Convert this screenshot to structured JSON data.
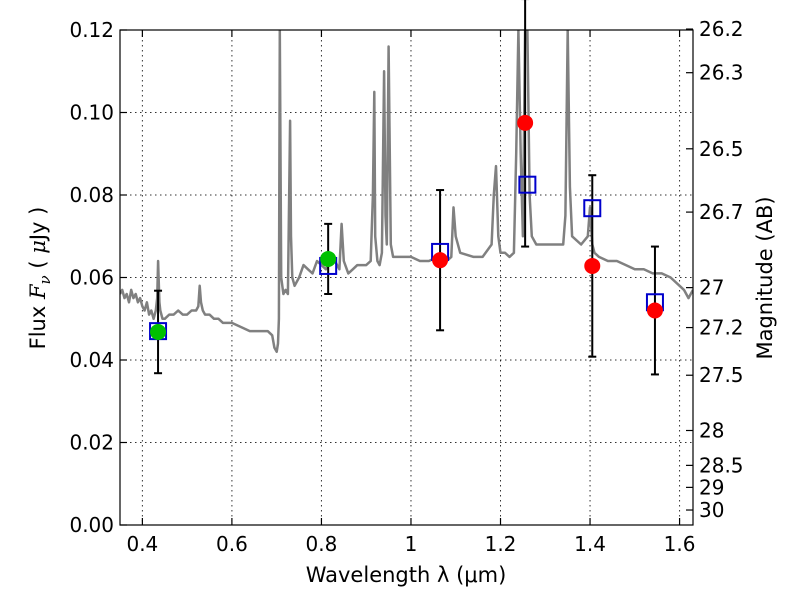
{
  "chart_data": {
    "type": "scatter",
    "xlabel": "Wavelength  λ (μm)",
    "ylabel": "Flux  F_ν  ( μJy )",
    "ylabel_parts": {
      "pre": "Flux ",
      "sym": "F",
      "sub": "ν",
      "open": " ( ",
      "mu": "μ",
      "unit": "Jy )"
    },
    "y2label": "Magnitude (AB)",
    "xlim": [
      0.35,
      1.63
    ],
    "ylim": [
      0.0,
      0.12
    ],
    "grid": true,
    "x_ticks": [
      {
        "value": 0.4,
        "label": "0.4"
      },
      {
        "value": 0.6,
        "label": "0.6"
      },
      {
        "value": 0.8,
        "label": "0.8"
      },
      {
        "value": 1.0,
        "label": "1"
      },
      {
        "value": 1.2,
        "label": "1.2"
      },
      {
        "value": 1.4,
        "label": "1.4"
      },
      {
        "value": 1.6,
        "label": "1.6"
      }
    ],
    "y_ticks": [
      {
        "value": 0.0,
        "label": "0.00"
      },
      {
        "value": 0.02,
        "label": "0.02"
      },
      {
        "value": 0.04,
        "label": "0.04"
      },
      {
        "value": 0.06,
        "label": "0.06"
      },
      {
        "value": 0.08,
        "label": "0.08"
      },
      {
        "value": 0.1,
        "label": "0.10"
      },
      {
        "value": 0.12,
        "label": "0.12"
      }
    ],
    "y2_ticks": [
      {
        "mag": 26.2,
        "label": "26.2"
      },
      {
        "mag": 26.3,
        "label": "26.3"
      },
      {
        "mag": 26.5,
        "label": "26.5"
      },
      {
        "mag": 26.7,
        "label": "26.7"
      },
      {
        "mag": 27.0,
        "label": "27"
      },
      {
        "mag": 27.2,
        "label": "27.2"
      },
      {
        "mag": 27.5,
        "label": "27.5"
      },
      {
        "mag": 28.0,
        "label": "28"
      },
      {
        "mag": 28.5,
        "label": "28.5"
      },
      {
        "mag": 29.0,
        "label": "29"
      },
      {
        "mag": 30.0,
        "label": "30"
      }
    ],
    "colors": {
      "spectrum": "#808080",
      "observed_green": "#00c000",
      "observed_red": "#ff0000",
      "model": "#0000cc",
      "errorbar": "#000000"
    },
    "spectrum": {
      "x": [
        0.35,
        0.355,
        0.36,
        0.365,
        0.37,
        0.375,
        0.38,
        0.385,
        0.39,
        0.395,
        0.4,
        0.405,
        0.41,
        0.415,
        0.42,
        0.425,
        0.43,
        0.433,
        0.435,
        0.438,
        0.44,
        0.445,
        0.45,
        0.46,
        0.47,
        0.48,
        0.49,
        0.5,
        0.51,
        0.52,
        0.525,
        0.528,
        0.531,
        0.535,
        0.54,
        0.55,
        0.56,
        0.57,
        0.58,
        0.59,
        0.6,
        0.62,
        0.64,
        0.66,
        0.68,
        0.69,
        0.695,
        0.7,
        0.703,
        0.705,
        0.707,
        0.71,
        0.715,
        0.72,
        0.725,
        0.73,
        0.732,
        0.735,
        0.74,
        0.75,
        0.76,
        0.77,
        0.78,
        0.79,
        0.8,
        0.81,
        0.82,
        0.83,
        0.84,
        0.845,
        0.85,
        0.86,
        0.87,
        0.88,
        0.9,
        0.91,
        0.915,
        0.918,
        0.92,
        0.925,
        0.93,
        0.935,
        0.94,
        0.943,
        0.946,
        0.95,
        0.955,
        0.96,
        0.98,
        1.0,
        1.02,
        1.04,
        1.06,
        1.08,
        1.09,
        1.095,
        1.1,
        1.11,
        1.14,
        1.16,
        1.18,
        1.185,
        1.19,
        1.195,
        1.2,
        1.21,
        1.22,
        1.23,
        1.235,
        1.24,
        1.245,
        1.25,
        1.255,
        1.26,
        1.265,
        1.27,
        1.28,
        1.3,
        1.32,
        1.34,
        1.345,
        1.35,
        1.355,
        1.36,
        1.38,
        1.395,
        1.4,
        1.405,
        1.41,
        1.42,
        1.44,
        1.46,
        1.48,
        1.5,
        1.52,
        1.54,
        1.56,
        1.58,
        1.6,
        1.61,
        1.62,
        1.63
      ],
      "y": [
        0.056,
        0.057,
        0.055,
        0.056,
        0.054,
        0.057,
        0.055,
        0.056,
        0.054,
        0.055,
        0.053,
        0.052,
        0.054,
        0.051,
        0.052,
        0.05,
        0.052,
        0.055,
        0.064,
        0.054,
        0.052,
        0.05,
        0.05,
        0.051,
        0.051,
        0.052,
        0.051,
        0.051,
        0.052,
        0.052,
        0.053,
        0.058,
        0.054,
        0.052,
        0.051,
        0.051,
        0.05,
        0.05,
        0.049,
        0.049,
        0.049,
        0.048,
        0.047,
        0.047,
        0.047,
        0.046,
        0.043,
        0.042,
        0.044,
        0.05,
        0.12,
        0.06,
        0.056,
        0.057,
        0.056,
        0.098,
        0.07,
        0.06,
        0.058,
        0.06,
        0.063,
        0.062,
        0.061,
        0.064,
        0.063,
        0.062,
        0.064,
        0.064,
        0.062,
        0.073,
        0.064,
        0.061,
        0.062,
        0.063,
        0.063,
        0.064,
        0.08,
        0.105,
        0.07,
        0.064,
        0.063,
        0.066,
        0.11,
        0.075,
        0.068,
        0.116,
        0.068,
        0.065,
        0.065,
        0.065,
        0.064,
        0.064,
        0.065,
        0.064,
        0.065,
        0.077,
        0.07,
        0.066,
        0.065,
        0.065,
        0.068,
        0.08,
        0.087,
        0.07,
        0.066,
        0.066,
        0.065,
        0.066,
        0.09,
        0.12,
        0.09,
        0.07,
        0.12,
        0.12,
        0.08,
        0.07,
        0.068,
        0.068,
        0.068,
        0.068,
        0.075,
        0.12,
        0.082,
        0.07,
        0.068,
        0.07,
        0.077,
        0.068,
        0.066,
        0.065,
        0.064,
        0.064,
        0.063,
        0.062,
        0.062,
        0.061,
        0.061,
        0.06,
        0.058,
        0.057,
        0.055,
        0.057
      ]
    },
    "observed": [
      {
        "x": 0.435,
        "y": 0.0468,
        "err": 0.01,
        "color": "green"
      },
      {
        "x": 0.815,
        "y": 0.0645,
        "err": 0.0085,
        "color": "green"
      },
      {
        "x": 1.065,
        "y": 0.0642,
        "err": 0.017,
        "color": "red"
      },
      {
        "x": 1.255,
        "y": 0.0975,
        "err": 0.03,
        "color": "red"
      },
      {
        "x": 1.405,
        "y": 0.0628,
        "err": 0.022,
        "color": "red"
      },
      {
        "x": 1.545,
        "y": 0.052,
        "err": 0.0155,
        "color": "red"
      }
    ],
    "model_points": [
      {
        "x": 0.435,
        "y": 0.047
      },
      {
        "x": 0.815,
        "y": 0.0628
      },
      {
        "x": 1.065,
        "y": 0.0662
      },
      {
        "x": 1.26,
        "y": 0.0825
      },
      {
        "x": 1.405,
        "y": 0.0768
      },
      {
        "x": 1.545,
        "y": 0.054
      }
    ]
  }
}
